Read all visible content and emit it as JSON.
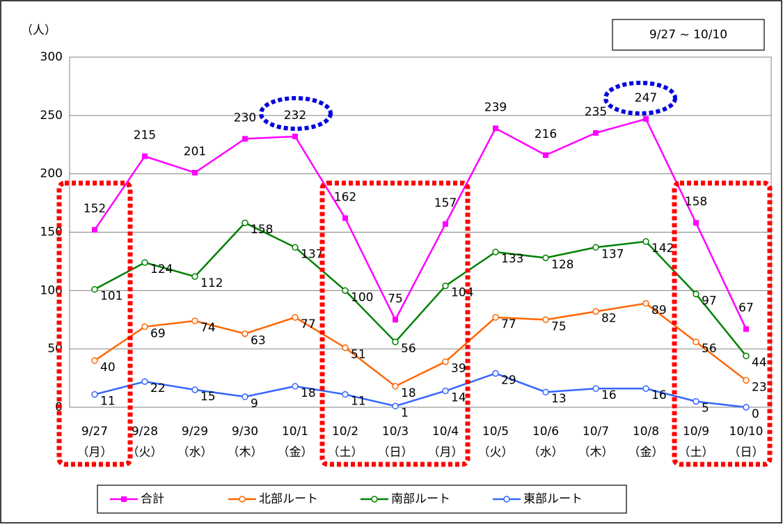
{
  "chart_data": {
    "type": "line",
    "y_unit_label": "（人）",
    "period_label": "9/27 ~ 10/10",
    "categories": [
      "9/27",
      "9/28",
      "9/29",
      "9/30",
      "10/1",
      "10/2",
      "10/3",
      "10/4",
      "10/5",
      "10/6",
      "10/7",
      "10/8",
      "10/9",
      "10/10"
    ],
    "weekdays": [
      "（月）",
      "（火）",
      "（水）",
      "（木）",
      "（金）",
      "（土）",
      "（日）",
      "（月）",
      "（火）",
      "（水）",
      "（木）",
      "（金）",
      "（土）",
      "（日）"
    ],
    "series": [
      {
        "name": "合計",
        "color": "#ff00ff",
        "marker": "square",
        "values": [
          152,
          215,
          201,
          230,
          232,
          162,
          75,
          157,
          239,
          216,
          235,
          247,
          158,
          67
        ]
      },
      {
        "name": "北部ルート",
        "color": "#ff6600",
        "marker": "circle",
        "values": [
          40,
          69,
          74,
          63,
          77,
          51,
          18,
          39,
          77,
          75,
          82,
          89,
          56,
          23
        ]
      },
      {
        "name": "南部ルート",
        "color": "#008000",
        "marker": "circle",
        "values": [
          101,
          124,
          112,
          158,
          137,
          100,
          56,
          104,
          133,
          128,
          137,
          142,
          97,
          44
        ]
      },
      {
        "name": "東部ルート",
        "color": "#3366ff",
        "marker": "circle",
        "values": [
          11,
          22,
          15,
          9,
          18,
          11,
          1,
          14,
          29,
          13,
          16,
          16,
          5,
          0
        ]
      }
    ],
    "ylim": [
      0,
      300
    ],
    "yticks": [
      0,
      50,
      100,
      150,
      200,
      250,
      300
    ],
    "grid": true,
    "legend": "bottom"
  }
}
